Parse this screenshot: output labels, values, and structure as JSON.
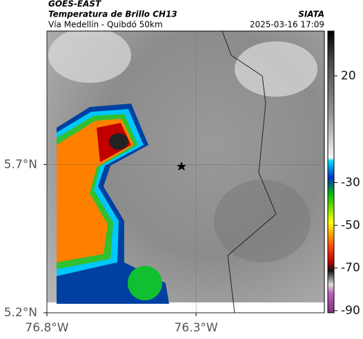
{
  "header": {
    "source": "GOES-EAST",
    "title": "Temperatura de Brillo CH13",
    "subtitle": "Vía Medellín - Quibdó 50km",
    "brand": "SIATA",
    "timestamp": "2025-03-16 17:09"
  },
  "map": {
    "xlim": [
      -76.8,
      -75.87
    ],
    "ylim": [
      5.2,
      6.15
    ],
    "xticks": [
      {
        "value": -76.8,
        "label": "76.8°W"
      },
      {
        "value": -76.3,
        "label": "76.3°W"
      }
    ],
    "yticks": [
      {
        "value": 5.7,
        "label": "5.7°N"
      },
      {
        "value": 5.2,
        "label": "5.2°N"
      }
    ]
  },
  "colorbar": {
    "lim": [
      -91,
      41
    ],
    "ticks": [
      20,
      -30,
      -50,
      -70,
      -90
    ]
  }
}
